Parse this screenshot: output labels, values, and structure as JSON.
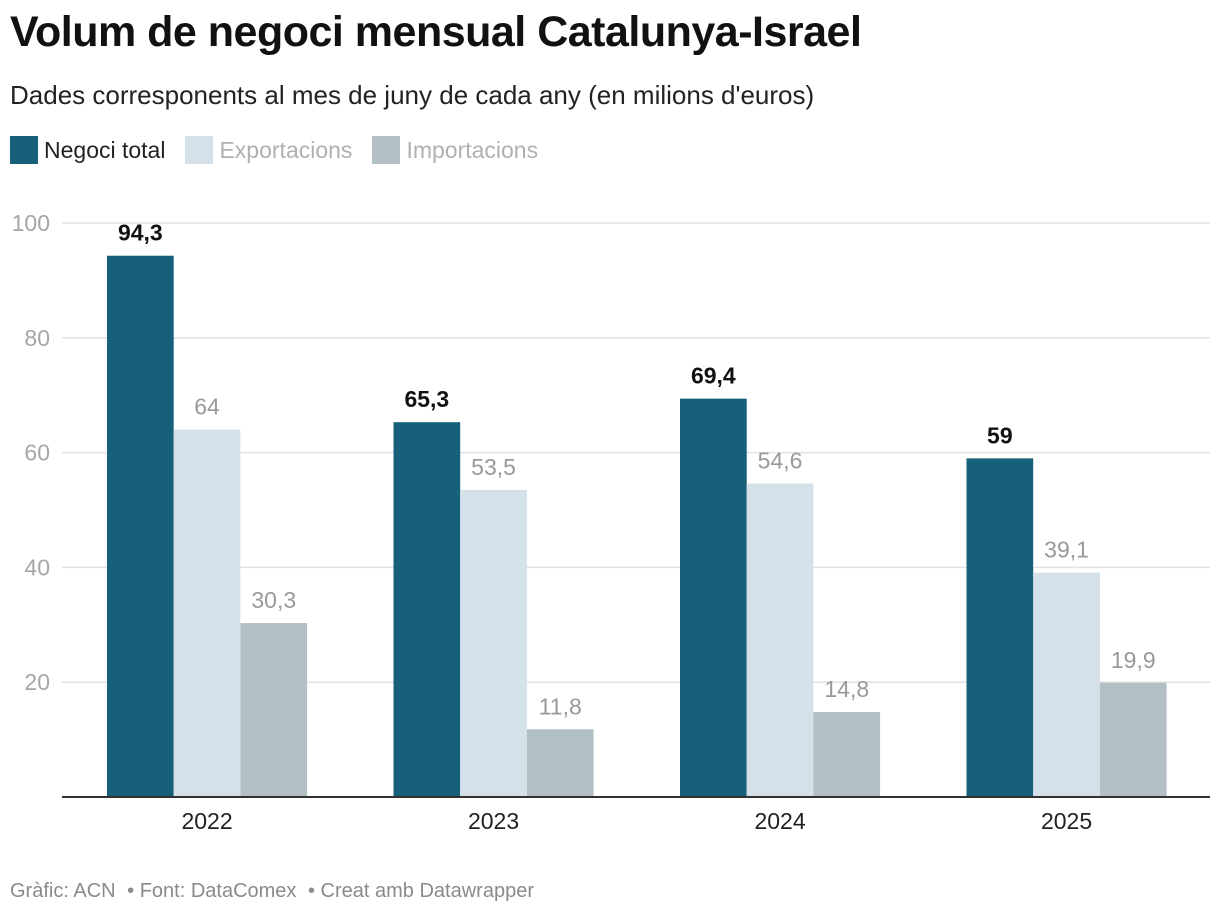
{
  "title": "Volum de negoci mensual Catalunya-Israel",
  "subtitle": "Dades corresponents al mes de juny de cada any (en milions d'euros)",
  "legend": [
    {
      "label": "Negoci total",
      "color": "#17607a",
      "text_color": "#222222"
    },
    {
      "label": "Exportacions",
      "color": "#d5e1e8",
      "text_color": "#b0b0b0"
    },
    {
      "label": "Importacions",
      "color": "#b2c0c5",
      "text_color": "#b0b0b0"
    }
  ],
  "footer": {
    "credit": "Gràfic: ACN",
    "source": "• Font: DataComex",
    "tool": "• Creat amb Datawrapper"
  },
  "chart_data": {
    "type": "bar",
    "title": "Volum de negoci mensual Catalunya-Israel",
    "categories": [
      "2022",
      "2023",
      "2024",
      "2025"
    ],
    "series": [
      {
        "name": "Negoci total",
        "values": [
          94.3,
          65.3,
          69.4,
          59
        ],
        "labels": [
          "94,3",
          "65,3",
          "69,4",
          "59"
        ],
        "color": "#17607a",
        "label_color": "#111111",
        "label_bold": true
      },
      {
        "name": "Exportacions",
        "values": [
          64,
          53.5,
          54.6,
          39.1
        ],
        "labels": [
          "64",
          "53,5",
          "54,6",
          "39,1"
        ],
        "color": "#d5e1e8",
        "label_color": "#999999",
        "label_bold": false
      },
      {
        "name": "Importacions",
        "values": [
          30.3,
          11.8,
          14.8,
          19.9
        ],
        "labels": [
          "30,3",
          "11,8",
          "14,8",
          "19,9"
        ],
        "color": "#b2c0c5",
        "label_color": "#999999",
        "label_bold": false
      }
    ],
    "yticks": [
      20,
      40,
      60,
      80,
      100
    ],
    "ylim": [
      0,
      100
    ],
    "xlabel": "",
    "ylabel": "",
    "grid": true,
    "legend_position": "top-left"
  }
}
